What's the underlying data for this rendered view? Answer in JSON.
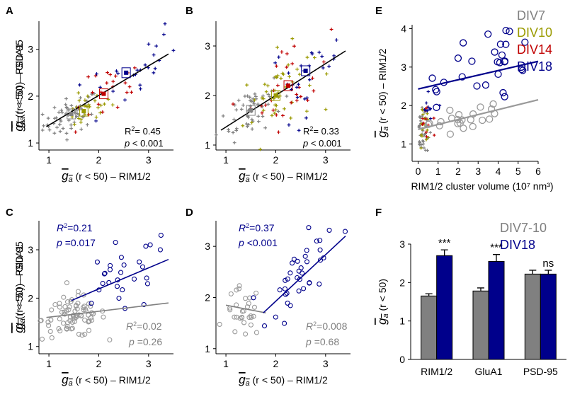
{
  "colors": {
    "div7": "#808080",
    "div10": "#9a9a00",
    "div14": "#c00000",
    "div18": "#00008b",
    "fit": "#000000",
    "gray": "#808080"
  },
  "chart_data": [
    {
      "panel": "A",
      "type": "scatter",
      "xlabel": "g_a (r < 50) – RIM1/2",
      "ylabel": "g_a (r < 50) – GluA1",
      "xlim": [
        0.8,
        3.5
      ],
      "ylim": [
        0.85,
        3.6
      ],
      "xticks": [
        1,
        2,
        3
      ],
      "yticks": [
        1,
        2,
        3
      ],
      "stats": {
        "r2": "= 0.45",
        "p": "< 0.001"
      },
      "fit": {
        "x": [
          0.95,
          3.4
        ],
        "y": [
          1.35,
          2.9
        ]
      },
      "means": [
        {
          "group": "DIV7",
          "x": 1.45,
          "y": 1.62
        },
        {
          "group": "DIV10",
          "x": 1.7,
          "y": 1.68
        },
        {
          "group": "DIV14",
          "x": 2.1,
          "y": 2.05
        },
        {
          "group": "DIV18",
          "x": 2.55,
          "y": 2.5
        }
      ]
    },
    {
      "panel": "B",
      "type": "scatter",
      "xlabel": "g_a (r < 50) – RIM1/2",
      "ylabel": "g_a (r < 50) – PSD-95",
      "xlim": [
        0.8,
        3.5
      ],
      "ylim": [
        0.9,
        3.5
      ],
      "xticks": [
        1,
        2,
        3
      ],
      "yticks": [
        1,
        2,
        3
      ],
      "stats": {
        "r2": "= 0.33",
        "p": "< 0.001"
      },
      "fit": {
        "x": [
          0.9,
          3.4
        ],
        "y": [
          1.3,
          2.9
        ]
      },
      "means": [
        {
          "group": "DIV7",
          "x": 1.5,
          "y": 1.7
        },
        {
          "group": "DIV10",
          "x": 2.0,
          "y": 2.0
        },
        {
          "group": "DIV14",
          "x": 2.25,
          "y": 2.2
        },
        {
          "group": "DIV18",
          "x": 2.6,
          "y": 2.5
        }
      ]
    },
    {
      "panel": "C",
      "type": "scatter",
      "xlabel": "g_a (r < 50) – RIM1/2",
      "ylabel": "g_a (r < 50) – GluA1",
      "xlim": [
        0.8,
        3.5
      ],
      "ylim": [
        0.85,
        3.6
      ],
      "xticks": [
        1,
        2,
        3
      ],
      "yticks": [
        1,
        2,
        3
      ],
      "stats_blue": {
        "r2": "=0.21",
        "p": "=0.017"
      },
      "stats_gray": {
        "r2": "=0.02",
        "p": "=0.26"
      },
      "fit_blue": {
        "x": [
          1.45,
          3.4
        ],
        "y": [
          1.95,
          2.8
        ]
      },
      "fit_gray": {
        "x": [
          0.95,
          3.4
        ],
        "y": [
          1.6,
          1.9
        ]
      }
    },
    {
      "panel": "D",
      "type": "scatter",
      "xlabel": "g_a (r < 50) – RIM1/2",
      "ylabel": "g_a (r < 50) – PSD-95",
      "xlim": [
        0.8,
        3.5
      ],
      "ylim": [
        0.9,
        3.5
      ],
      "xticks": [
        1,
        2,
        3
      ],
      "yticks": [
        1,
        2,
        3
      ],
      "stats_blue": {
        "r2": "=0.37",
        "p": "<0.001"
      },
      "stats_gray": {
        "r2": "=0.008",
        "p": "=0.68"
      },
      "fit_blue": {
        "x": [
          1.75,
          3.4
        ],
        "y": [
          1.7,
          3.2
        ]
      },
      "fit_gray": {
        "x": [
          1.0,
          1.8
        ],
        "y": [
          1.85,
          1.7
        ]
      }
    },
    {
      "panel": "E",
      "type": "scatter",
      "xlabel": "RIM1/2 cluster volume (10⁷ nm³)",
      "ylabel": "g_a (r < 50) – RIM1/2",
      "xlim": [
        -0.3,
        6
      ],
      "ylim": [
        0.55,
        4.1
      ],
      "xticks": [
        0,
        1,
        2,
        3,
        4,
        5,
        6
      ],
      "yticks": [
        1,
        2,
        3,
        4
      ],
      "legend": [
        "DIV7",
        "DIV10",
        "DIV14",
        "DIV18"
      ],
      "fit_blue": {
        "x": [
          0,
          6
        ],
        "y": [
          2.43,
          3.15
        ]
      },
      "fit_gray": {
        "x": [
          0,
          6
        ],
        "y": [
          1.38,
          2.15
        ]
      }
    },
    {
      "panel": "F",
      "type": "bar",
      "ylabel": "g_a (r < 50)",
      "categories": [
        "RIM1/2",
        "GluA1",
        "PSD-95"
      ],
      "ylim": [
        0,
        3
      ],
      "yticks": [
        0,
        1,
        2,
        3
      ],
      "legend": [
        "DIV7-10",
        "DIV18"
      ],
      "series": [
        {
          "name": "DIV7-10",
          "values": [
            1.65,
            1.78,
            2.22
          ],
          "errors": [
            0.06,
            0.08,
            0.1
          ]
        },
        {
          "name": "DIV18",
          "values": [
            2.7,
            2.55,
            2.22
          ],
          "errors": [
            0.15,
            0.18,
            0.1
          ]
        }
      ],
      "significance": [
        "***",
        "***",
        "ns"
      ]
    }
  ]
}
